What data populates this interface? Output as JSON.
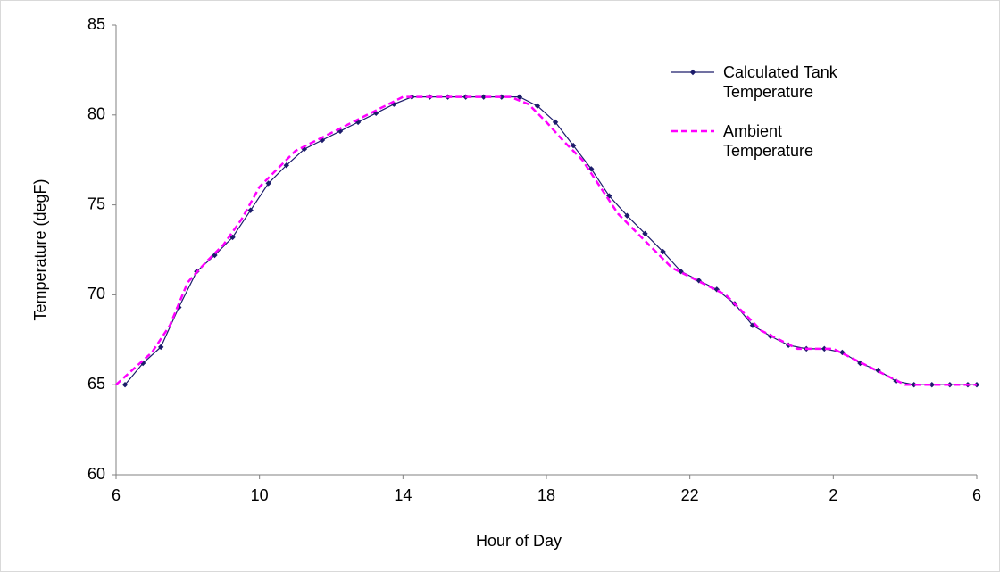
{
  "chart_data": {
    "type": "line",
    "xlabel": "Hour of Day",
    "ylabel": "Temperature (degF)",
    "xlim": [
      6,
      30
    ],
    "xticks": [
      6,
      10,
      14,
      18,
      22,
      {
        "value": 26,
        "label": "2"
      },
      {
        "value": 30,
        "label": "6"
      }
    ],
    "ylim": [
      60,
      85
    ],
    "yticks": [
      60,
      65,
      70,
      75,
      80,
      85
    ],
    "grid": false,
    "legend": "upper right",
    "series": [
      {
        "name": "Calculated Tank Temperature",
        "color": "#1c1c6b",
        "marker": "diamond",
        "dash": false,
        "x": [
          6.25,
          6.75,
          7.25,
          7.75,
          8.25,
          8.75,
          9.25,
          9.75,
          10.25,
          10.75,
          11.25,
          11.75,
          12.25,
          12.75,
          13.25,
          13.75,
          14.25,
          14.75,
          15.25,
          15.75,
          16.25,
          16.75,
          17.25,
          17.75,
          18.25,
          18.75,
          19.25,
          19.75,
          20.25,
          20.75,
          21.25,
          21.75,
          22.25,
          22.75,
          23.25,
          23.75,
          24.25,
          24.75,
          25.25,
          25.75,
          26.25,
          26.75,
          27.25,
          27.75,
          28.25,
          28.75,
          29.25,
          29.75,
          30
        ],
        "values": [
          65.0,
          66.2,
          67.1,
          69.3,
          71.3,
          72.2,
          73.2,
          74.7,
          76.2,
          77.2,
          78.1,
          78.6,
          79.1,
          79.6,
          80.1,
          80.6,
          81.0,
          81.0,
          81.0,
          81.0,
          81.0,
          81.0,
          81.0,
          80.5,
          79.6,
          78.3,
          77.0,
          75.5,
          74.4,
          73.4,
          72.4,
          71.3,
          70.8,
          70.3,
          69.5,
          68.3,
          67.7,
          67.2,
          67.0,
          67.0,
          66.8,
          66.2,
          65.8,
          65.2,
          65.0,
          65.0,
          65.0,
          65.0,
          65.0
        ]
      },
      {
        "name": "Ambient Temperature",
        "color": "#ff00ff",
        "marker": "none",
        "dash": true,
        "x": [
          6,
          6.5,
          7,
          7.5,
          8,
          8.5,
          9,
          9.5,
          10,
          10.5,
          11,
          11.5,
          12,
          12.5,
          13,
          13.5,
          14,
          14.5,
          15,
          15.5,
          16,
          16.5,
          17,
          17.5,
          18,
          18.5,
          19,
          19.5,
          20,
          20.5,
          21,
          21.5,
          22,
          22.5,
          23,
          23.5,
          24,
          24.5,
          25,
          25.5,
          26,
          26.5,
          27,
          27.5,
          28,
          28.5,
          29,
          29.5,
          30
        ],
        "values": [
          65.0,
          65.9,
          66.8,
          68.3,
          70.7,
          71.8,
          72.8,
          74.2,
          76.0,
          77.0,
          78.0,
          78.5,
          79.0,
          79.5,
          80.0,
          80.5,
          81.0,
          81.0,
          81.0,
          81.0,
          81.0,
          81.0,
          81.0,
          80.6,
          79.6,
          78.5,
          77.5,
          76.0,
          74.5,
          73.5,
          72.5,
          71.5,
          71.0,
          70.5,
          70.0,
          69.0,
          68.0,
          67.5,
          67.0,
          67.0,
          67.0,
          66.5,
          66.0,
          65.5,
          65.0,
          65.0,
          65.0,
          65.0,
          65.0
        ]
      }
    ]
  }
}
